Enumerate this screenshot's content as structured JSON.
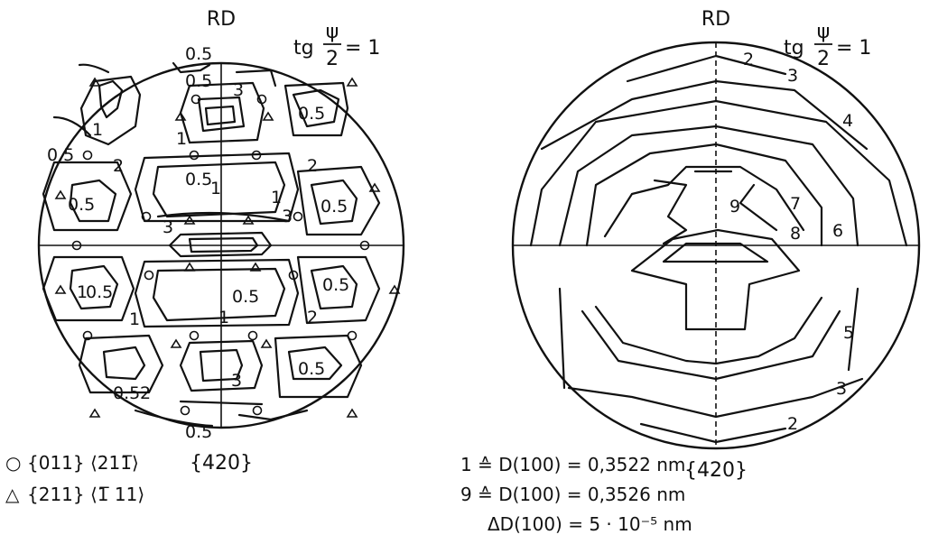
{
  "left": {
    "rd_label": "RD",
    "bottom_label": "{420}",
    "tg_lhs": "tg",
    "tg_num": "ψ",
    "tg_den": "2",
    "tg_rhs": "= 1",
    "contour_labels": [
      "0.5",
      "0.5",
      "3",
      "0.5",
      "1",
      "0.5",
      "2",
      "2",
      "0.5",
      "1",
      "0.5",
      "0.5",
      "3",
      "3",
      "1",
      "0.5",
      "0.5",
      "0.5",
      "1",
      "2",
      "1",
      "0.5",
      "2",
      "0.5",
      "3",
      "0.5",
      "1",
      "1"
    ],
    "legend": [
      {
        "marker": "○",
        "text": "{011} ⟨211̅⟩"
      },
      {
        "marker": "△",
        "text": "{211} ⟨1̅ 11⟩"
      }
    ]
  },
  "right": {
    "rd_label": "RD",
    "bottom_label": "{420}",
    "tg_lhs": "tg",
    "tg_num": "ψ",
    "tg_den": "2",
    "tg_rhs": "= 1",
    "contour_labels": [
      "2",
      "3",
      "4",
      "9",
      "7",
      "8",
      "6",
      "5",
      "3",
      "2"
    ],
    "notes": [
      "1 ≙ D(100) = 0,3522  nm",
      "9 ≙ D(100) = 0,3526  nm",
      "ΔD(100) = 5 · 10⁻⁵ nm"
    ]
  },
  "colors": {
    "ink": "#111111",
    "background": "#ffffff"
  }
}
